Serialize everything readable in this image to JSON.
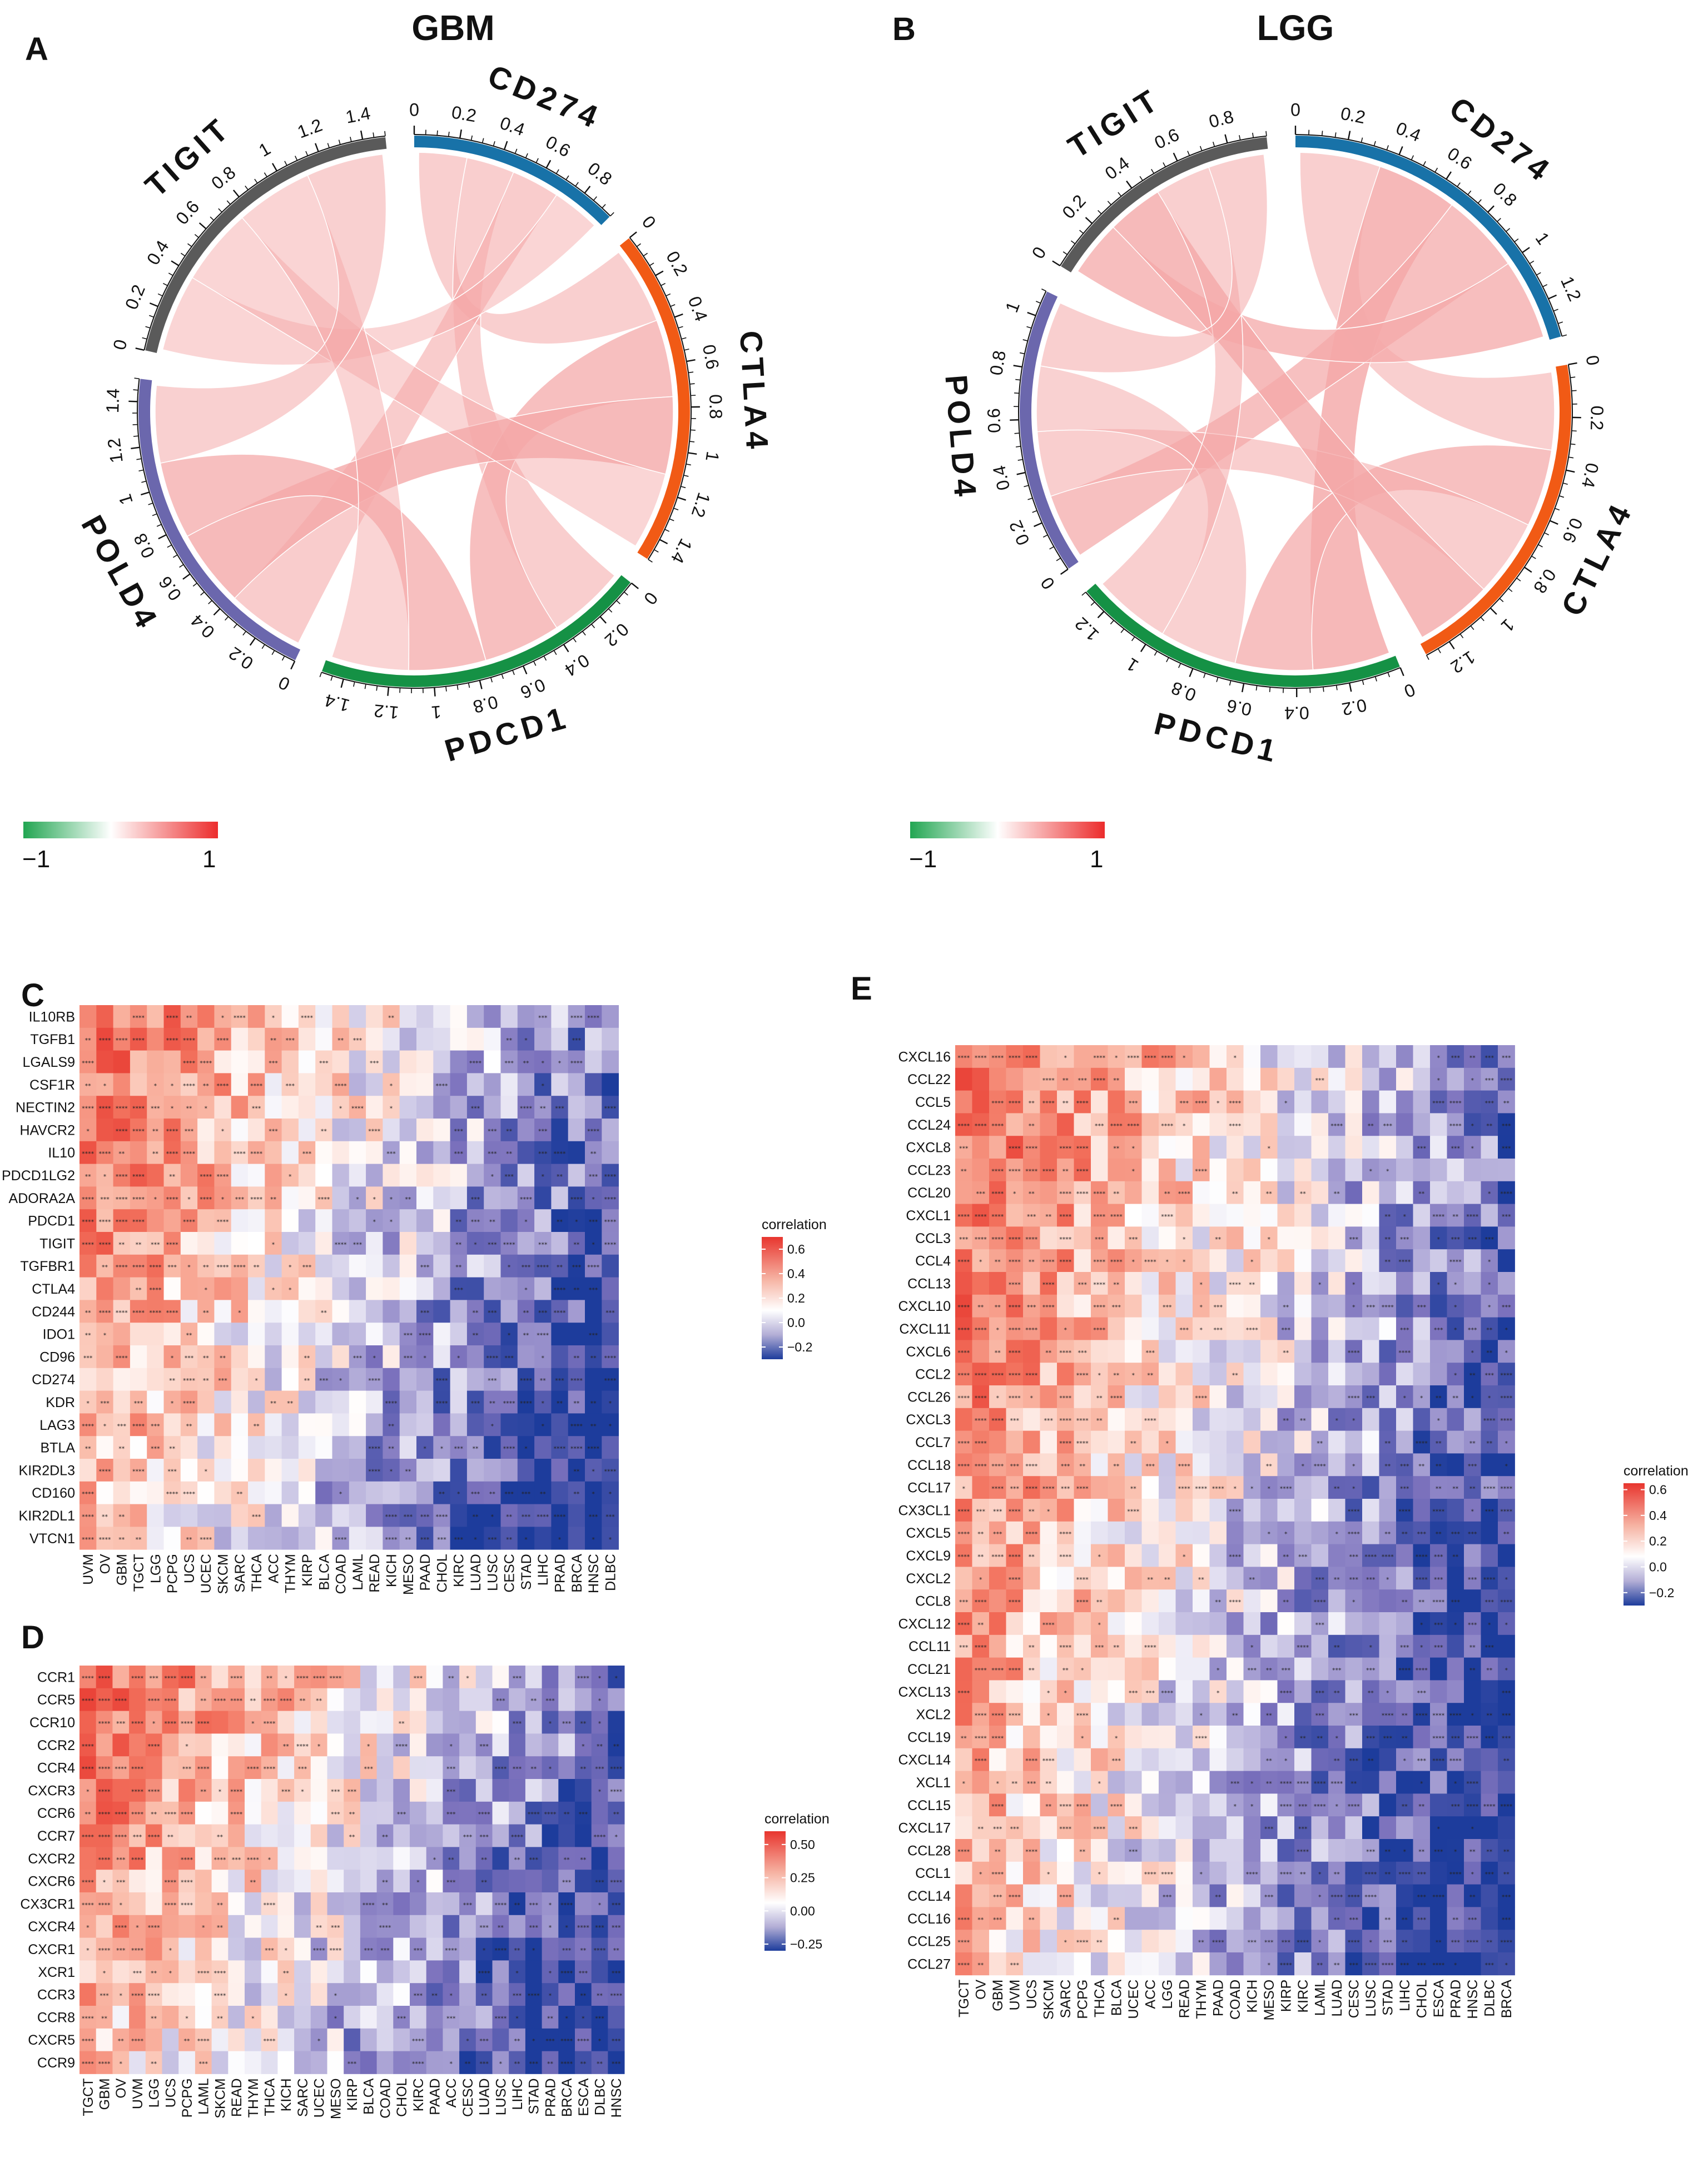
{
  "panels": {
    "A": {
      "letter": "A",
      "title": "GBM"
    },
    "B": {
      "letter": "B",
      "title": "LGG"
    },
    "C": {
      "letter": "C"
    },
    "D": {
      "letter": "D"
    },
    "E": {
      "letter": "E"
    }
  },
  "colors": {
    "green": "#22a652",
    "red": "#ec2c2c",
    "blue": "#2a3e9a",
    "ribbon": "#f4a8a8"
  },
  "chart_data": [
    {
      "id": "chord-gbm",
      "type": "chord",
      "title": "GBM",
      "sectors": [
        {
          "name": "CD274",
          "color": "#1872a8",
          "max": 0.95,
          "ticks": [
            "0",
            "0.2",
            "0.4",
            "0.6",
            "0.8"
          ]
        },
        {
          "name": "CTLA4",
          "color": "#f15a15",
          "max": 1.5,
          "ticks": [
            "0",
            "0.2",
            "0.4",
            "0.6",
            "0.8",
            "1",
            "1.2",
            "1.4"
          ]
        },
        {
          "name": "PDCD1",
          "color": "#159145",
          "max": 1.5,
          "ticks": [
            "0",
            "0.2",
            "0.4",
            "0.6",
            "0.8",
            "1",
            "1.2",
            "1.4"
          ]
        },
        {
          "name": "POLD4",
          "color": "#6b67ad",
          "max": 1.5,
          "ticks": [
            "0",
            "0.2",
            "0.4",
            "0.6",
            "0.8",
            "1",
            "1.2",
            "1.4"
          ]
        },
        {
          "name": "TIGIT",
          "color": "#5a5a5a",
          "max": 1.5,
          "ticks": [
            "0",
            "0.2",
            "0.4",
            "0.6",
            "0.8",
            "1",
            "1.2",
            "1.4"
          ]
        }
      ],
      "scale": {
        "min": "−1",
        "max": "1"
      }
    },
    {
      "id": "chord-lgg",
      "type": "chord",
      "title": "LGG",
      "sectors": [
        {
          "name": "CD274",
          "color": "#1872a8",
          "max": 1.35,
          "ticks": [
            "0",
            "0.2",
            "0.4",
            "0.6",
            "0.8",
            "1",
            "1.2"
          ]
        },
        {
          "name": "CTLA4",
          "color": "#f15a15",
          "max": 1.3,
          "ticks": [
            "0",
            "0.2",
            "0.4",
            "0.6",
            "0.8",
            "1",
            "1.2"
          ]
        },
        {
          "name": "PDCD1",
          "color": "#159145",
          "max": 1.3,
          "ticks": [
            "0",
            "0.2",
            "0.4",
            "0.6",
            "0.8",
            "1",
            "1.2"
          ]
        },
        {
          "name": "POLD4",
          "color": "#6b67ad",
          "max": 1.1,
          "ticks": [
            "0",
            "0.2",
            "0.4",
            "0.6",
            "0.8",
            "1"
          ]
        },
        {
          "name": "TIGIT",
          "color": "#5a5a5a",
          "max": 0.95,
          "ticks": [
            "0",
            "0.2",
            "0.4",
            "0.6",
            "0.8"
          ]
        }
      ],
      "scale": {
        "min": "−1",
        "max": "1"
      }
    },
    {
      "id": "heatmap-c",
      "type": "heatmap",
      "rows": [
        "IL10RB",
        "TGFB1",
        "LGALS9",
        "CSF1R",
        "NECTIN2",
        "HAVCR2",
        "IL10",
        "PDCD1LG2",
        "ADORA2A",
        "PDCD1",
        "TIGIT",
        "TGFBR1",
        "CTLA4",
        "CD244",
        "IDO1",
        "CD96",
        "CD274",
        "KDR",
        "LAG3",
        "BTLA",
        "KIR2DL3",
        "CD160",
        "KIR2DL1",
        "VTCN1"
      ],
      "cols": [
        "UVM",
        "OV",
        "GBM",
        "TGCT",
        "LGG",
        "PCPG",
        "UCS",
        "UCEC",
        "SKCM",
        "SARC",
        "THCA",
        "ACC",
        "THYM",
        "KIRP",
        "BLCA",
        "COAD",
        "LAML",
        "READ",
        "KICH",
        "MESO",
        "PAAD",
        "CHOL",
        "KIRC",
        "LUAD",
        "LUSC",
        "CESC",
        "STAD",
        "LIHC",
        "PRAD",
        "BRCA",
        "HNSC",
        "DLBC"
      ],
      "legend": {
        "title": "correlation",
        "ticks": [
          "0.6",
          "0.4",
          "0.2",
          "0.0",
          "−0.2"
        ],
        "range": [
          -0.3,
          0.7
        ]
      }
    },
    {
      "id": "heatmap-d",
      "type": "heatmap",
      "rows": [
        "CCR1",
        "CCR5",
        "CCR10",
        "CCR2",
        "CCR4",
        "CXCR3",
        "CCR6",
        "CCR7",
        "CXCR2",
        "CXCR6",
        "CX3CR1",
        "CXCR4",
        "CXCR1",
        "XCR1",
        "CCR3",
        "CCR8",
        "CXCR5",
        "CCR9"
      ],
      "cols": [
        "TGCT",
        "GBM",
        "OV",
        "UVM",
        "LGG",
        "UCS",
        "PCPG",
        "LAML",
        "SKCM",
        "READ",
        "THYM",
        "THCA",
        "KICH",
        "SARC",
        "UCEC",
        "MESO",
        "KIRP",
        "BLCA",
        "COAD",
        "CHOL",
        "KIRC",
        "PAAD",
        "ACC",
        "CESC",
        "LUAD",
        "LUSC",
        "LIHC",
        "STAD",
        "PRAD",
        "BRCA",
        "ESCA",
        "DLBC",
        "HNSC"
      ],
      "legend": {
        "title": "correlation",
        "ticks": [
          "0.50",
          "0.25",
          "0.00",
          "−0.25"
        ],
        "range": [
          -0.3,
          0.6
        ]
      }
    },
    {
      "id": "heatmap-e",
      "type": "heatmap",
      "rows": [
        "CXCL16",
        "CCL22",
        "CCL5",
        "CCL24",
        "CXCL8",
        "CCL23",
        "CCL20",
        "CXCL1",
        "CCL3",
        "CCL4",
        "CCL13",
        "CXCL10",
        "CXCL11",
        "CXCL6",
        "CCL2",
        "CCL26",
        "CXCL3",
        "CCL7",
        "CCL18",
        "CCL17",
        "CX3CL1",
        "CXCL5",
        "CXCL9",
        "CXCL2",
        "CCL8",
        "CXCL12",
        "CCL11",
        "CCL21",
        "CXCL13",
        "XCL2",
        "CCL19",
        "CXCL14",
        "XCL1",
        "CCL15",
        "CXCL17",
        "CCL28",
        "CCL1",
        "CCL14",
        "CCL16",
        "CCL25",
        "CCL27"
      ],
      "cols": [
        "TGCT",
        "OV",
        "GBM",
        "UVM",
        "UCS",
        "SKCM",
        "SARC",
        "PCPG",
        "THCA",
        "BLCA",
        "UCEC",
        "ACC",
        "LGG",
        "READ",
        "THYM",
        "PAAD",
        "COAD",
        "KICH",
        "MESO",
        "KIRP",
        "KIRC",
        "LAML",
        "LUAD",
        "CESC",
        "LUSC",
        "STAD",
        "LIHC",
        "CHOL",
        "ESCA",
        "PRAD",
        "HNSC",
        "DLBC",
        "BRCA"
      ],
      "legend": {
        "title": "correlation",
        "ticks": [
          "0.6",
          "0.4",
          "0.2",
          "0.0",
          "−0.2"
        ],
        "range": [
          -0.3,
          0.65
        ]
      }
    }
  ]
}
